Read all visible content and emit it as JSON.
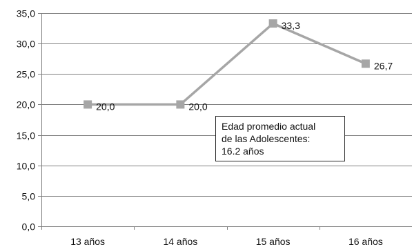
{
  "chart_data": {
    "type": "line",
    "title": "",
    "xlabel": "",
    "ylabel": "",
    "categories": [
      "13 años",
      "14 años",
      "15 años",
      "16 años"
    ],
    "series": [
      {
        "values": [
          20.0,
          20.0,
          33.3,
          26.7
        ],
        "data_labels": [
          "20,0",
          "20,0",
          "33,3",
          "26,7"
        ],
        "color": "#a6a6a6",
        "marker": "square"
      }
    ],
    "ylim": [
      0,
      35
    ],
    "yticks": [
      0,
      5,
      10,
      15,
      20,
      25,
      30,
      35
    ],
    "ytick_labels": [
      "0,0",
      "5,0",
      "10,0",
      "15,0",
      "20,0",
      "25,0",
      "30,0",
      "35,0"
    ],
    "grid": true,
    "legend": "none",
    "annotation": {
      "lines": [
        "Edad promedio actual",
        "de las Adolescentes:",
        "16.2 años"
      ]
    }
  }
}
